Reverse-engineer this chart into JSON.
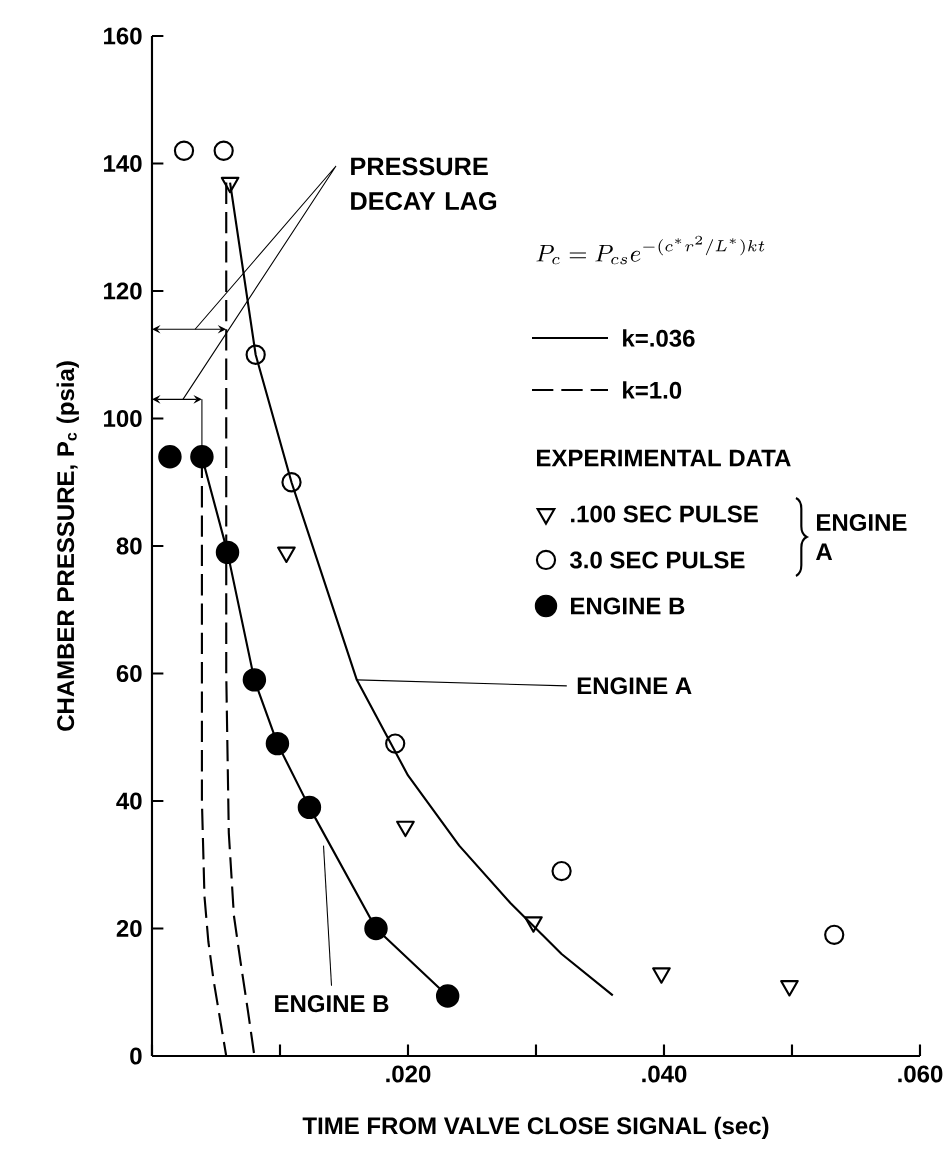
{
  "chart_data": {
    "type": "scatter",
    "xlabel": "TIME FROM VALVE CLOSE SIGNAL (sec)",
    "ylabel": "CHAMBER PRESSURE, P$_{c}$ (psia)",
    "xlim": [
      0,
      0.06
    ],
    "ylim": [
      0,
      160
    ],
    "xticks": [
      {
        "value": 0,
        "label": null
      },
      {
        "value": 0.01,
        "label": null
      },
      {
        "value": 0.02,
        "label": ".020"
      },
      {
        "value": 0.03,
        "label": null
      },
      {
        "value": 0.04,
        "label": ".040"
      },
      {
        "value": 0.05,
        "label": null
      },
      {
        "value": 0.06,
        "label": ".060"
      }
    ],
    "yticks": [
      0,
      20,
      40,
      60,
      80,
      100,
      120,
      140,
      160
    ],
    "legend": "top right",
    "series": [
      {
        "name": "k=.036",
        "type": "line",
        "line_style": "solid",
        "marker": "none",
        "color": "#000000",
        "x": [
          0.0061,
          0.0081,
          0.0109,
          0.016,
          0.02,
          0.024,
          0.028,
          0.032,
          0.036
        ],
        "values": [
          137,
          110,
          90,
          59,
          44,
          33,
          24,
          16,
          9.5
        ]
      },
      {
        "type": "line",
        "line_style": "solid",
        "marker": "none",
        "color": "#000000",
        "x": [
          0.0039,
          0.0059,
          0.008,
          0.0098,
          0.0123,
          0.0175,
          0.0231
        ],
        "values": [
          94,
          79,
          59,
          49,
          39,
          20,
          9.4
        ]
      },
      {
        "name": "k=1.0",
        "type": "line",
        "line_style": "dashed",
        "marker": "none",
        "color": "#000000",
        "x": [
          0.0058,
          0.0058,
          0.006,
          0.0064,
          0.0069,
          0.0075,
          0.008
        ],
        "values": [
          137,
          60,
          35,
          22,
          15,
          7,
          0
        ]
      },
      {
        "type": "line",
        "line_style": "dashed",
        "marker": "none",
        "color": "#000000",
        "x": [
          0.0039,
          0.0039,
          0.0041,
          0.0044,
          0.0048,
          0.0053,
          0.0058
        ],
        "values": [
          94,
          40,
          25,
          18,
          12,
          6,
          0
        ]
      },
      {
        "name": ".100 SEC PULSE",
        "marker": "triangle",
        "color": "#000000",
        "x": [
          0.0061,
          0.0105,
          0.0198,
          0.0298,
          0.0398,
          0.0498
        ],
        "values": [
          137,
          79,
          36,
          21,
          13,
          11
        ]
      },
      {
        "name": "3.0 SEC PULSE",
        "marker": "open circle",
        "color": "#000000",
        "x": [
          0.0025,
          0.0056,
          0.0081,
          0.0109,
          0.019,
          0.032,
          0.0533
        ],
        "values": [
          142,
          142,
          110,
          90,
          49,
          29,
          19
        ]
      },
      {
        "name": "ENGINE B",
        "marker": "circle",
        "color": "#000000",
        "x": [
          0.0014,
          0.0039,
          0.0059,
          0.008,
          0.0098,
          0.0123,
          0.0175,
          0.0231
        ],
        "values": [
          94,
          94,
          79,
          59,
          49,
          39,
          20,
          9.4
        ]
      }
    ],
    "annotations": [
      "P_c=P_{cs}e^{-(c^{*}r^{2}/L^{*})kt}",
      "EXPERIMENTAL DATA",
      "ENGINE A",
      "PRESSURE DECAY LAG",
      {
        "text": "ENGINE A",
        "x": 0.016,
        "y": 59
      },
      {
        "text": "ENGINE B",
        "x": 0.0134,
        "y": 33
      }
    ]
  }
}
